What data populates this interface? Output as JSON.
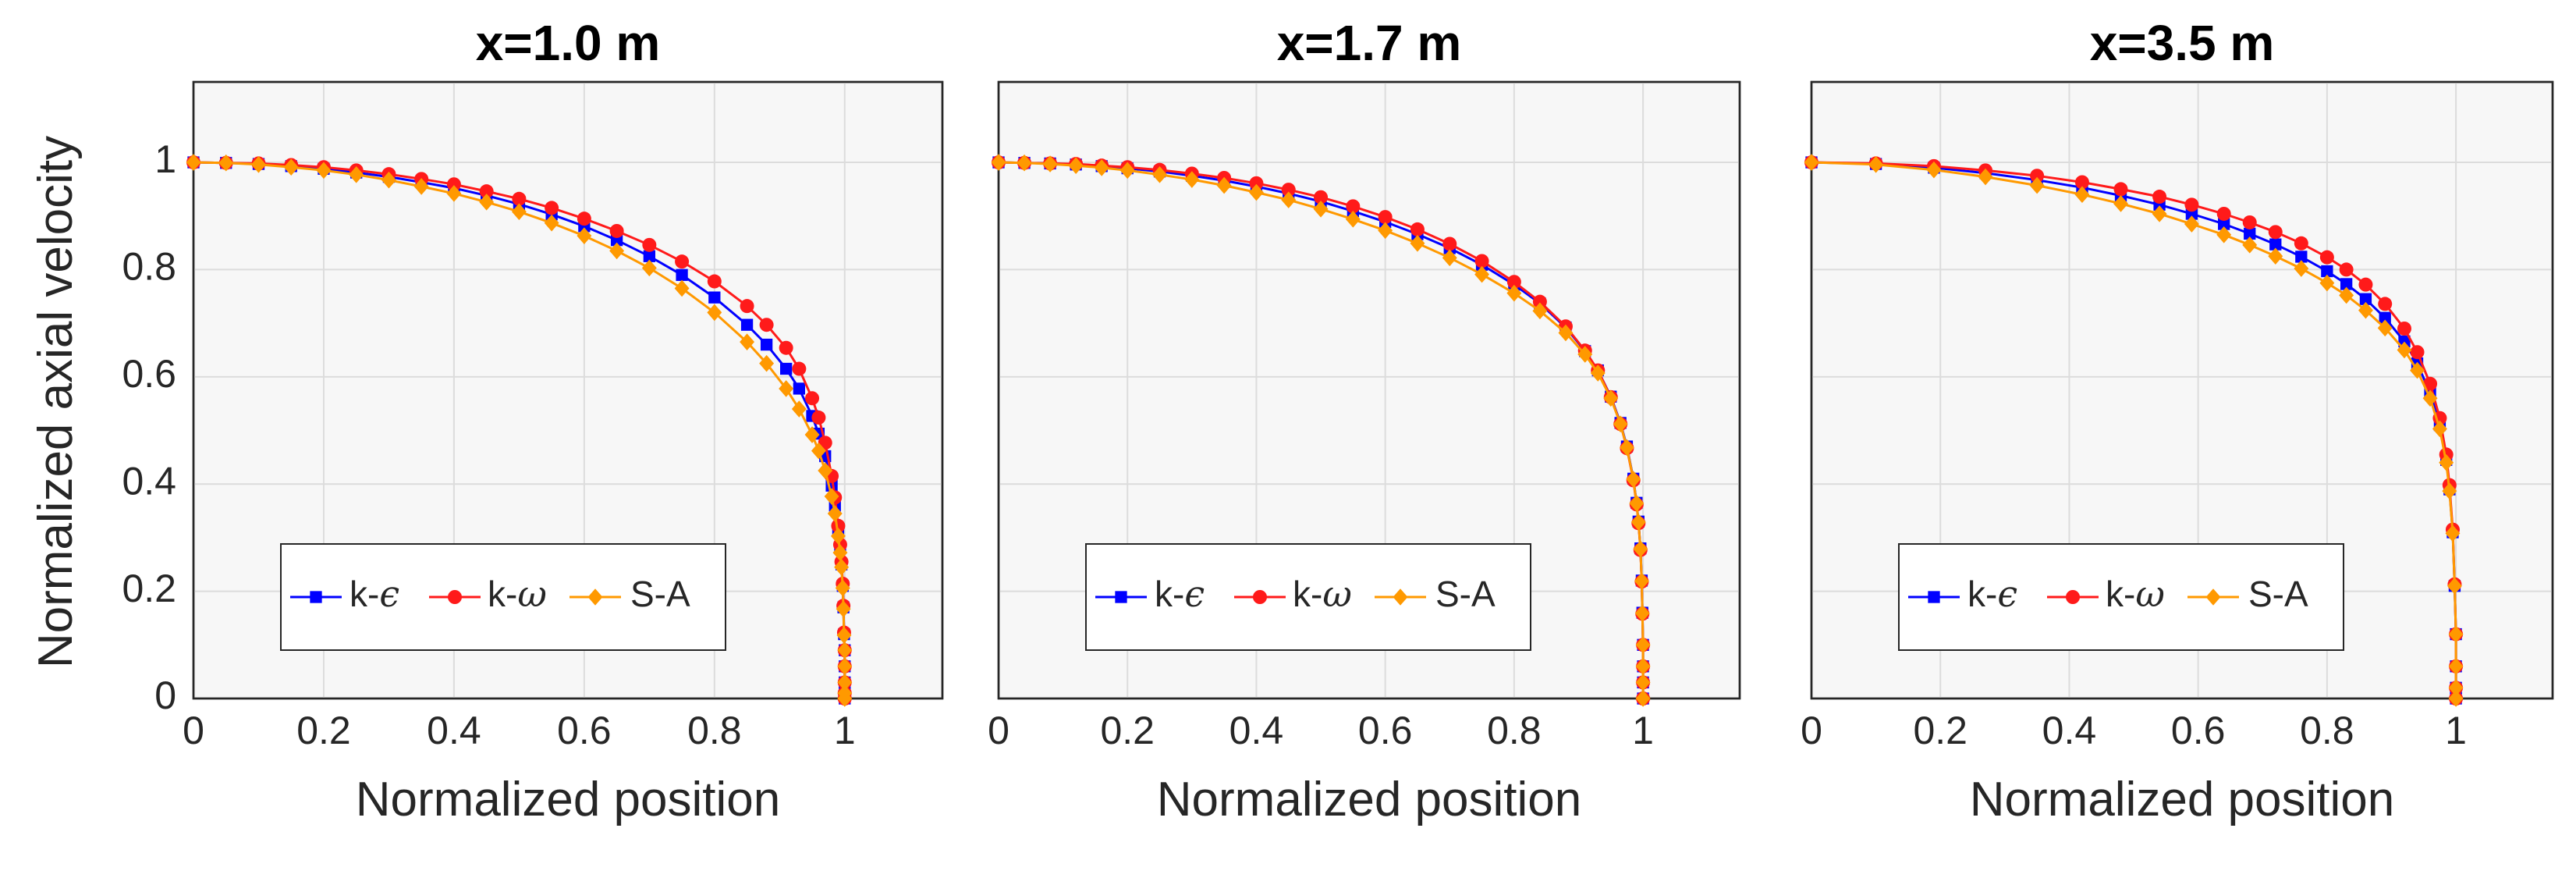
{
  "figure": {
    "ylabel": "Normalized axial velocity",
    "xlabel": "Normalized position"
  },
  "series_styles": [
    {
      "name": "k-ε",
      "prefix": "k-",
      "greek": "ϵ",
      "color": "#0000ff",
      "marker": "square"
    },
    {
      "name": "k-ω",
      "prefix": "k-",
      "greek": "ω",
      "color": "#ff1a1a",
      "marker": "circle"
    },
    {
      "name": "S-A",
      "prefix": "S-A",
      "greek": "",
      "color": "#ff9900",
      "marker": "diamond"
    }
  ],
  "chart_data": [
    {
      "type": "line",
      "title": "x=1.0 m",
      "xlabel": "Normalized position",
      "ylabel": "Normalized axial velocity",
      "xlim": [
        0,
        1.15
      ],
      "ylim": [
        0,
        1.15
      ],
      "xticks": [
        0,
        0.2,
        0.4,
        0.6,
        0.8,
        1
      ],
      "yticks": [
        0,
        0.2,
        0.4,
        0.6,
        0.8,
        1
      ],
      "xtick_labels": [
        "0",
        "0.2",
        "0.4",
        "0.6",
        "0.8",
        "1"
      ],
      "ytick_labels": [
        "0",
        "0.2",
        "0.4",
        "0.6",
        "0.8",
        "1"
      ],
      "grid": true,
      "legend": {
        "position": "lower-left",
        "orientation": "horizontal"
      },
      "series": [
        {
          "name": "k-ε",
          "x": [
            0,
            0.05,
            0.1,
            0.15,
            0.2,
            0.25,
            0.3,
            0.35,
            0.4,
            0.45,
            0.5,
            0.55,
            0.6,
            0.65,
            0.7,
            0.75,
            0.8,
            0.85,
            0.88,
            0.91,
            0.93,
            0.95,
            0.96,
            0.97,
            0.98,
            0.985,
            0.99,
            0.993,
            0.995,
            0.997,
            0.998,
            0.999,
            1.0,
            1.0,
            1.0,
            1.0,
            1.0
          ],
          "y": [
            1.0,
            0.999,
            0.997,
            0.993,
            0.988,
            0.981,
            0.973,
            0.963,
            0.952,
            0.938,
            0.922,
            0.903,
            0.881,
            0.855,
            0.825,
            0.79,
            0.748,
            0.697,
            0.66,
            0.615,
            0.578,
            0.527,
            0.494,
            0.452,
            0.397,
            0.36,
            0.313,
            0.28,
            0.25,
            0.21,
            0.17,
            0.12,
            0.09,
            0.06,
            0.03,
            0.01,
            0.0
          ]
        },
        {
          "name": "k-ω",
          "x": [
            0,
            0.05,
            0.1,
            0.15,
            0.2,
            0.25,
            0.3,
            0.35,
            0.4,
            0.45,
            0.5,
            0.55,
            0.6,
            0.65,
            0.7,
            0.75,
            0.8,
            0.85,
            0.88,
            0.91,
            0.93,
            0.95,
            0.96,
            0.97,
            0.98,
            0.985,
            0.99,
            0.993,
            0.995,
            0.997,
            0.998,
            0.999,
            1.0,
            1.0,
            1.0,
            1.0,
            1.0
          ],
          "y": [
            1.0,
            0.999,
            0.998,
            0.995,
            0.991,
            0.985,
            0.978,
            0.969,
            0.959,
            0.946,
            0.932,
            0.915,
            0.895,
            0.872,
            0.846,
            0.815,
            0.778,
            0.732,
            0.697,
            0.654,
            0.615,
            0.56,
            0.524,
            0.477,
            0.415,
            0.375,
            0.322,
            0.287,
            0.255,
            0.214,
            0.173,
            0.123,
            0.09,
            0.06,
            0.03,
            0.01,
            0.0
          ]
        },
        {
          "name": "S-A",
          "x": [
            0,
            0.05,
            0.1,
            0.15,
            0.2,
            0.25,
            0.3,
            0.35,
            0.4,
            0.45,
            0.5,
            0.55,
            0.6,
            0.65,
            0.7,
            0.75,
            0.8,
            0.85,
            0.88,
            0.91,
            0.93,
            0.95,
            0.96,
            0.97,
            0.98,
            0.985,
            0.99,
            0.993,
            0.995,
            0.997,
            0.998,
            0.999,
            1.0,
            1.0,
            1.0,
            1.0,
            1.0
          ],
          "y": [
            1.0,
            0.999,
            0.996,
            0.991,
            0.985,
            0.977,
            0.967,
            0.955,
            0.942,
            0.926,
            0.908,
            0.887,
            0.863,
            0.835,
            0.803,
            0.765,
            0.72,
            0.665,
            0.625,
            0.578,
            0.54,
            0.492,
            0.462,
            0.425,
            0.377,
            0.345,
            0.303,
            0.272,
            0.245,
            0.206,
            0.167,
            0.118,
            0.09,
            0.06,
            0.03,
            0.01,
            0.0
          ]
        }
      ]
    },
    {
      "type": "line",
      "title": "x=1.7 m",
      "xlabel": "Normalized position",
      "ylabel": "",
      "xlim": [
        0,
        1.15
      ],
      "ylim": [
        0,
        1.15
      ],
      "xticks": [
        0,
        0.2,
        0.4,
        0.6,
        0.8,
        1
      ],
      "xtick_labels": [
        "0",
        "0.2",
        "0.4",
        "0.6",
        "0.8",
        "1"
      ],
      "grid": true,
      "legend": {
        "position": "lower-left",
        "orientation": "horizontal"
      },
      "series": [
        {
          "name": "k-ε",
          "x": [
            0,
            0.04,
            0.08,
            0.12,
            0.16,
            0.2,
            0.25,
            0.3,
            0.35,
            0.4,
            0.45,
            0.5,
            0.55,
            0.6,
            0.65,
            0.7,
            0.75,
            0.8,
            0.84,
            0.88,
            0.91,
            0.93,
            0.95,
            0.965,
            0.975,
            0.985,
            0.99,
            0.993,
            0.996,
            0.998,
            0.999,
            1.0,
            1.0,
            1.0,
            1.0
          ],
          "y": [
            1.0,
            0.999,
            0.998,
            0.996,
            0.993,
            0.989,
            0.983,
            0.975,
            0.966,
            0.955,
            0.942,
            0.927,
            0.909,
            0.889,
            0.866,
            0.84,
            0.809,
            0.772,
            0.737,
            0.692,
            0.648,
            0.612,
            0.563,
            0.514,
            0.47,
            0.41,
            0.365,
            0.33,
            0.28,
            0.22,
            0.16,
            0.1,
            0.06,
            0.03,
            0.0
          ]
        },
        {
          "name": "k-ω",
          "x": [
            0,
            0.04,
            0.08,
            0.12,
            0.16,
            0.2,
            0.25,
            0.3,
            0.35,
            0.4,
            0.45,
            0.5,
            0.55,
            0.6,
            0.65,
            0.7,
            0.75,
            0.8,
            0.84,
            0.88,
            0.91,
            0.93,
            0.95,
            0.965,
            0.975,
            0.985,
            0.99,
            0.993,
            0.996,
            0.998,
            0.999,
            1.0,
            1.0,
            1.0,
            1.0
          ],
          "y": [
            1.0,
            0.999,
            0.998,
            0.997,
            0.994,
            0.991,
            0.986,
            0.979,
            0.971,
            0.961,
            0.949,
            0.935,
            0.918,
            0.898,
            0.875,
            0.848,
            0.816,
            0.777,
            0.74,
            0.694,
            0.649,
            0.612,
            0.562,
            0.512,
            0.467,
            0.407,
            0.362,
            0.327,
            0.277,
            0.218,
            0.158,
            0.1,
            0.06,
            0.03,
            0.0
          ]
        },
        {
          "name": "S-A",
          "x": [
            0,
            0.04,
            0.08,
            0.12,
            0.16,
            0.2,
            0.25,
            0.3,
            0.35,
            0.4,
            0.45,
            0.5,
            0.55,
            0.6,
            0.65,
            0.7,
            0.75,
            0.8,
            0.84,
            0.88,
            0.91,
            0.93,
            0.95,
            0.965,
            0.975,
            0.985,
            0.99,
            0.993,
            0.996,
            0.998,
            0.999,
            1.0,
            1.0,
            1.0,
            1.0
          ],
          "y": [
            1.0,
            0.999,
            0.997,
            0.994,
            0.99,
            0.985,
            0.977,
            0.968,
            0.957,
            0.944,
            0.93,
            0.913,
            0.894,
            0.873,
            0.849,
            0.822,
            0.791,
            0.756,
            0.723,
            0.682,
            0.642,
            0.607,
            0.56,
            0.512,
            0.468,
            0.409,
            0.364,
            0.329,
            0.279,
            0.219,
            0.159,
            0.1,
            0.06,
            0.03,
            0.0
          ]
        }
      ]
    },
    {
      "type": "line",
      "title": "x=3.5 m",
      "xlabel": "Normalized position",
      "ylabel": "",
      "xlim": [
        0,
        1.15
      ],
      "ylim": [
        0,
        1.15
      ],
      "xticks": [
        0,
        0.2,
        0.4,
        0.6,
        0.8,
        1
      ],
      "xtick_labels": [
        "0",
        "0.2",
        "0.4",
        "0.6",
        "0.8",
        "1"
      ],
      "grid": true,
      "legend": {
        "position": "lower-left",
        "orientation": "horizontal"
      },
      "series": [
        {
          "name": "k-ε",
          "x": [
            0,
            0.1,
            0.19,
            0.27,
            0.35,
            0.42,
            0.48,
            0.54,
            0.59,
            0.64,
            0.68,
            0.72,
            0.76,
            0.8,
            0.83,
            0.86,
            0.89,
            0.92,
            0.94,
            0.96,
            0.975,
            0.985,
            0.99,
            0.995,
            0.998,
            1.0,
            1.0,
            1.0,
            1.0
          ],
          "y": [
            1.0,
            0.997,
            0.99,
            0.98,
            0.967,
            0.953,
            0.938,
            0.921,
            0.904,
            0.885,
            0.867,
            0.847,
            0.824,
            0.797,
            0.773,
            0.745,
            0.71,
            0.666,
            0.625,
            0.57,
            0.51,
            0.445,
            0.39,
            0.31,
            0.21,
            0.12,
            0.06,
            0.02,
            0.0
          ]
        },
        {
          "name": "k-ω",
          "x": [
            0,
            0.1,
            0.19,
            0.27,
            0.35,
            0.42,
            0.48,
            0.54,
            0.59,
            0.64,
            0.68,
            0.72,
            0.76,
            0.8,
            0.83,
            0.86,
            0.89,
            0.92,
            0.94,
            0.96,
            0.975,
            0.985,
            0.99,
            0.995,
            0.998,
            1.0,
            1.0,
            1.0,
            1.0
          ],
          "y": [
            1.0,
            0.998,
            0.993,
            0.985,
            0.975,
            0.963,
            0.95,
            0.936,
            0.921,
            0.904,
            0.888,
            0.87,
            0.849,
            0.823,
            0.8,
            0.772,
            0.736,
            0.69,
            0.646,
            0.587,
            0.523,
            0.455,
            0.398,
            0.315,
            0.213,
            0.12,
            0.06,
            0.02,
            0.0
          ]
        },
        {
          "name": "S-A",
          "x": [
            0,
            0.1,
            0.19,
            0.27,
            0.35,
            0.42,
            0.48,
            0.54,
            0.59,
            0.64,
            0.68,
            0.72,
            0.76,
            0.8,
            0.83,
            0.86,
            0.89,
            0.92,
            0.94,
            0.96,
            0.975,
            0.985,
            0.99,
            0.995,
            0.998,
            1.0,
            1.0,
            1.0,
            1.0
          ],
          "y": [
            1.0,
            0.996,
            0.986,
            0.973,
            0.957,
            0.94,
            0.923,
            0.904,
            0.885,
            0.865,
            0.846,
            0.825,
            0.802,
            0.775,
            0.752,
            0.724,
            0.691,
            0.65,
            0.612,
            0.56,
            0.503,
            0.44,
            0.387,
            0.308,
            0.21,
            0.12,
            0.06,
            0.02,
            0.0
          ]
        }
      ]
    }
  ]
}
